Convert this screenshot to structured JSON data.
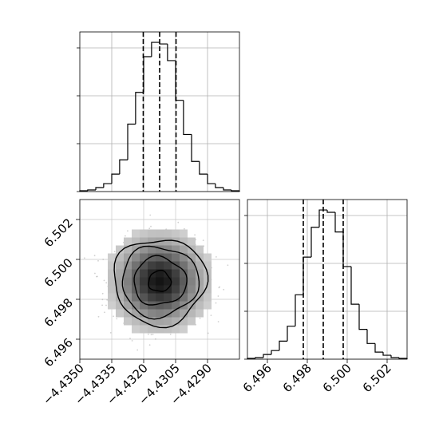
{
  "figure": {
    "type": "corner-plot"
  },
  "chart_data": [
    {
      "type": "bar",
      "panel": "top-left marginal histogram",
      "bin_edges": [
        -4.435,
        -4.43463,
        -4.43425,
        -4.43388,
        -4.4335,
        -4.43313,
        -4.43275,
        -4.43238,
        -4.432,
        -4.43163,
        -4.43125,
        -4.43088,
        -4.4305,
        -4.43013,
        -4.42975,
        -4.42938,
        -4.429,
        -4.42863,
        -4.42825,
        -4.42788,
        -4.4275
      ],
      "counts": [
        1,
        2,
        5,
        10,
        22,
        40,
        85,
        125,
        170,
        188,
        186,
        165,
        115,
        72,
        38,
        22,
        10,
        5,
        2,
        1
      ],
      "quantile_lines": [
        -4.43202,
        -4.43125,
        -4.43048
      ],
      "xlim": [
        -4.435,
        -4.4275
      ],
      "grid": true
    },
    {
      "type": "heatmap",
      "panel": "bottom-left 2D histogram",
      "x_center": -4.43125,
      "y_center": 6.4989,
      "x_sigma": 0.00078,
      "y_sigma": 0.00078,
      "xlim": [
        -4.435,
        -4.4275
      ],
      "ylim": [
        6.495,
        6.503
      ],
      "xticks": [
        -4.435,
        -4.4335,
        -4.432,
        -4.4305,
        -4.429
      ],
      "xtick_labels": [
        "−4.4350",
        "−4.4335",
        "−4.4320",
        "−4.4305",
        "−4.4290"
      ],
      "yticks": [
        6.496,
        6.498,
        6.5,
        6.502
      ],
      "ytick_labels": [
        "6.496",
        "6.498",
        "6.500",
        "6.502"
      ],
      "contour_levels": [
        "0.5σ",
        "1σ",
        "1.5σ",
        "2σ"
      ],
      "grid": true
    },
    {
      "type": "bar",
      "panel": "bottom-right marginal histogram",
      "bin_edges": [
        6.495,
        6.4954,
        6.4958,
        6.4962,
        6.4966,
        6.497,
        6.4974,
        6.4978,
        6.4982,
        6.4986,
        6.499,
        6.4994,
        6.4998,
        6.5002,
        6.5006,
        6.501,
        6.5014,
        6.5018,
        6.5022,
        6.5026,
        6.503
      ],
      "counts": [
        1,
        2,
        6,
        11,
        23,
        42,
        82,
        130,
        168,
        190,
        187,
        162,
        118,
        70,
        38,
        20,
        9,
        5,
        2,
        1
      ],
      "quantile_lines": [
        6.4978,
        6.4988,
        6.4998
      ],
      "xlim": [
        6.495,
        6.503
      ],
      "xticks": [
        6.496,
        6.498,
        6.5,
        6.502
      ],
      "xtick_labels": [
        "6.496",
        "6.498",
        "6.500",
        "6.502"
      ],
      "grid": true
    }
  ]
}
